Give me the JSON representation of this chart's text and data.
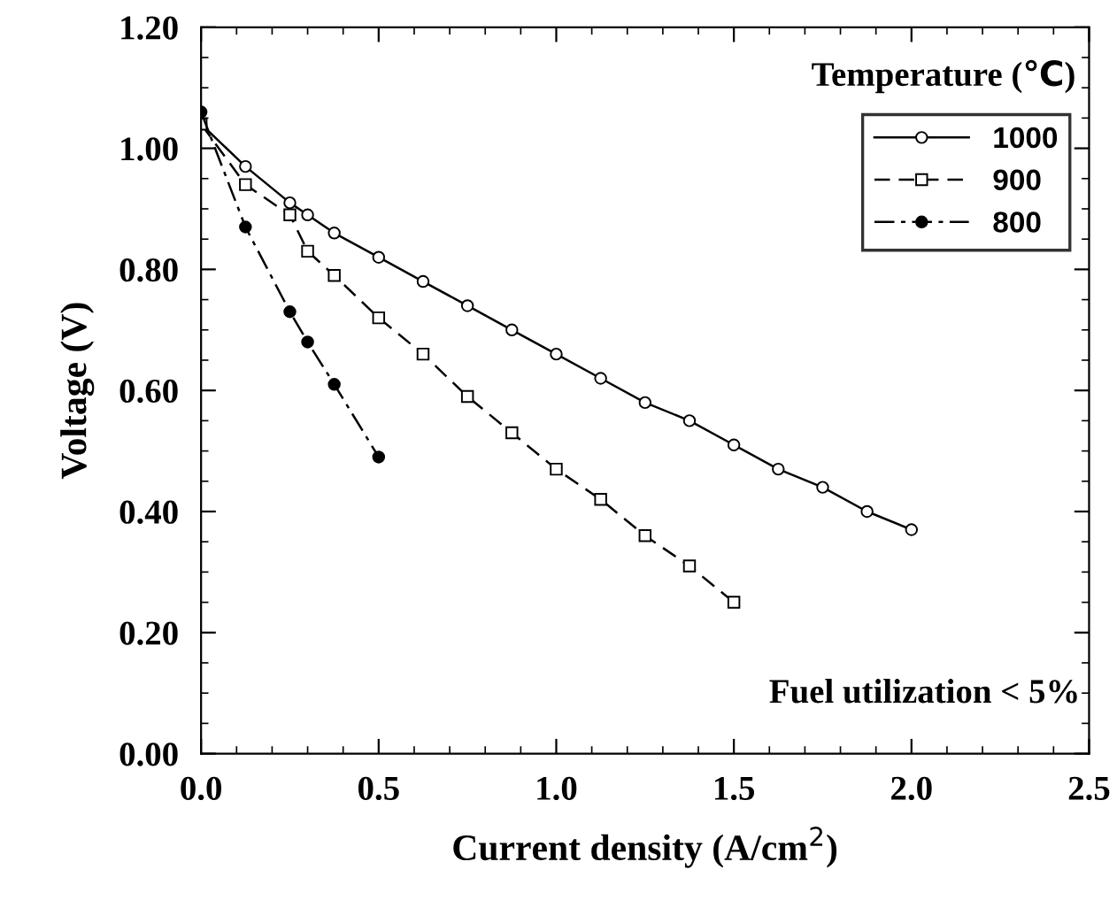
{
  "chart_data": {
    "type": "line",
    "xlabel": "Current density (A/cm$^{2}$)",
    "ylabel": "Voltage (V)",
    "legend_title": "Temperature (℃)",
    "annotations": [
      "Fuel utilization < 5%"
    ],
    "xlim": [
      0,
      2.5
    ],
    "ylim": [
      0,
      1.2
    ],
    "xticks": [
      {
        "value": 0,
        "label": "0.0"
      },
      {
        "value": 0.5,
        "label": "0.5"
      },
      {
        "value": 1.0,
        "label": "1.0"
      },
      {
        "value": 1.5,
        "label": "1.5"
      },
      {
        "value": 2.0,
        "label": "2.0"
      },
      {
        "value": 2.5,
        "label": "2.5"
      }
    ],
    "yticks": [
      {
        "value": 0,
        "label": "0.00"
      },
      {
        "value": 0.2,
        "label": "0.20"
      },
      {
        "value": 0.4,
        "label": "0.40"
      },
      {
        "value": 0.6,
        "label": "0.60"
      },
      {
        "value": 0.8,
        "label": "0.80"
      },
      {
        "value": 1.0,
        "label": "1.00"
      },
      {
        "value": 1.2,
        "label": "1.20"
      }
    ],
    "grid": false,
    "legend": "top right",
    "series": [
      {
        "name": "1000",
        "color": "#000000",
        "marker": "circle",
        "line_style": "solid",
        "x": [
          0,
          0.125,
          0.25,
          0.3,
          0.375,
          0.5,
          0.625,
          0.75,
          0.875,
          1.0,
          1.125,
          1.25,
          1.375,
          1.5,
          1.625,
          1.75,
          1.875,
          2.0
        ],
        "values": [
          1.04,
          0.97,
          0.91,
          0.89,
          0.86,
          0.82,
          0.78,
          0.74,
          0.7,
          0.66,
          0.62,
          0.58,
          0.55,
          0.51,
          0.47,
          0.44,
          0.4,
          0.37
        ]
      },
      {
        "name": "900",
        "color": "#000000",
        "marker": "square",
        "line_style": "dashed",
        "x": [
          0,
          0.125,
          0.25,
          0.3,
          0.375,
          0.5,
          0.625,
          0.75,
          0.875,
          1.0,
          1.125,
          1.25,
          1.375,
          1.5
        ],
        "values": [
          1.04,
          0.94,
          0.89,
          0.83,
          0.79,
          0.72,
          0.66,
          0.59,
          0.53,
          0.47,
          0.42,
          0.36,
          0.31,
          0.25
        ]
      },
      {
        "name": "800",
        "color": "#000000",
        "marker": "circle",
        "line_style": "dashdot",
        "x": [
          0,
          0.125,
          0.25,
          0.3,
          0.375,
          0.5
        ],
        "values": [
          1.06,
          0.87,
          0.73,
          0.68,
          0.61,
          0.49
        ]
      }
    ]
  }
}
